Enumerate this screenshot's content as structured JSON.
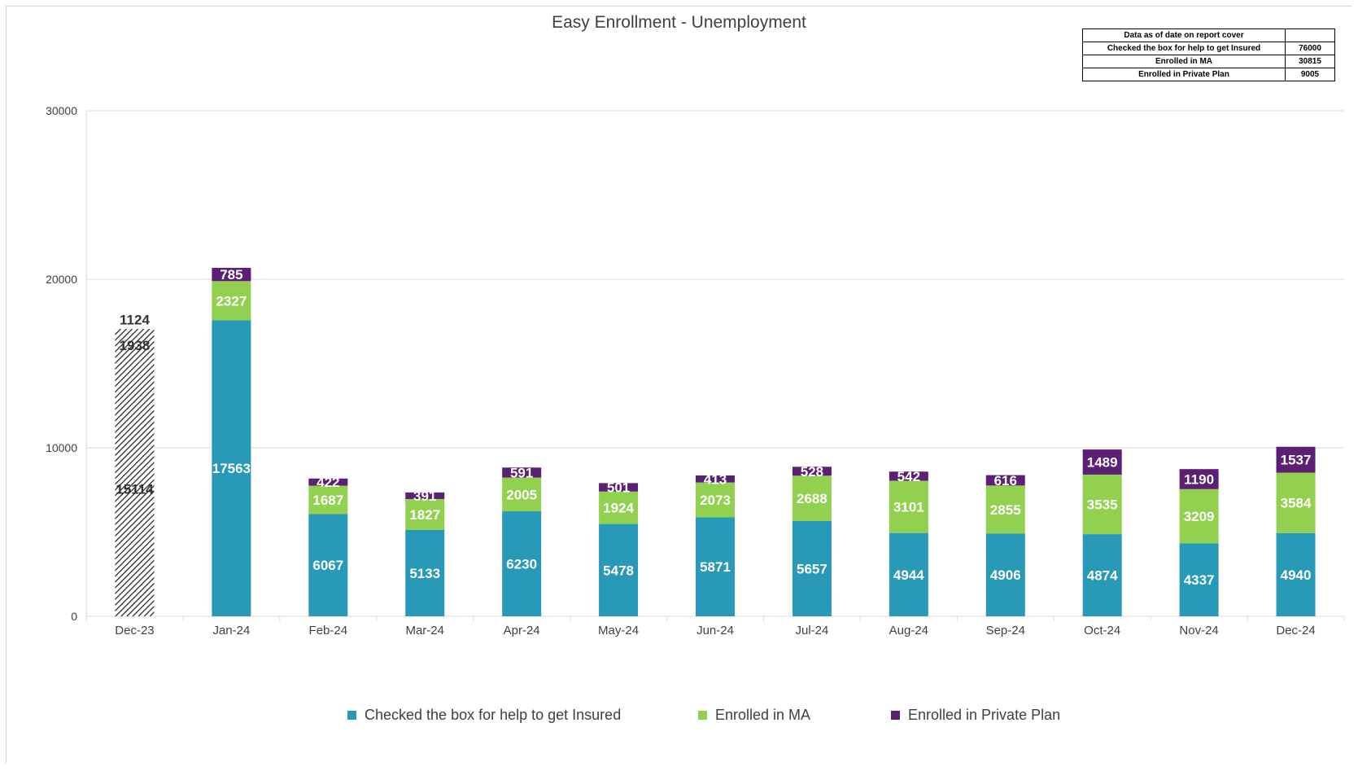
{
  "chart_data": {
    "type": "bar",
    "stacked": true,
    "title": "Easy Enrollment - Unemployment",
    "categories": [
      "Dec-23",
      "Jan-24",
      "Feb-24",
      "Mar-24",
      "Apr-24",
      "May-24",
      "Jun-24",
      "Jul-24",
      "Aug-24",
      "Sep-24",
      "Oct-24",
      "Nov-24",
      "Dec-24"
    ],
    "series": [
      {
        "name": "Checked the box for help to get Insured",
        "color": "#2899b6",
        "values": [
          15114,
          17563,
          6067,
          5133,
          6230,
          5478,
          5871,
          5657,
          4944,
          4906,
          4874,
          4337,
          4940
        ]
      },
      {
        "name": "Enrolled in MA",
        "color": "#92d050",
        "values": [
          1938,
          2327,
          1687,
          1827,
          2005,
          1924,
          2073,
          2688,
          3101,
          2855,
          3535,
          3209,
          3584
        ]
      },
      {
        "name": "Enrolled in Private Plan",
        "color": "#5b1f74",
        "values": [
          1124,
          785,
          422,
          391,
          591,
          501,
          413,
          528,
          542,
          616,
          1489,
          1190,
          1537
        ]
      }
    ],
    "hatched_categories": [
      "Dec-23"
    ],
    "ylim": [
      0,
      30000
    ],
    "yticks": [
      0,
      10000,
      20000,
      30000
    ],
    "grid": true,
    "legend_position": "bottom",
    "xlabel": "",
    "ylabel": ""
  },
  "summary_table": {
    "header": "Data as of date on report cover",
    "rows": [
      {
        "label": "Checked the box for help to get Insured",
        "value": "76000"
      },
      {
        "label": "Enrolled in MA",
        "value": "30815"
      },
      {
        "label": "Enrolled in Private Plan",
        "value": "9005"
      }
    ]
  }
}
